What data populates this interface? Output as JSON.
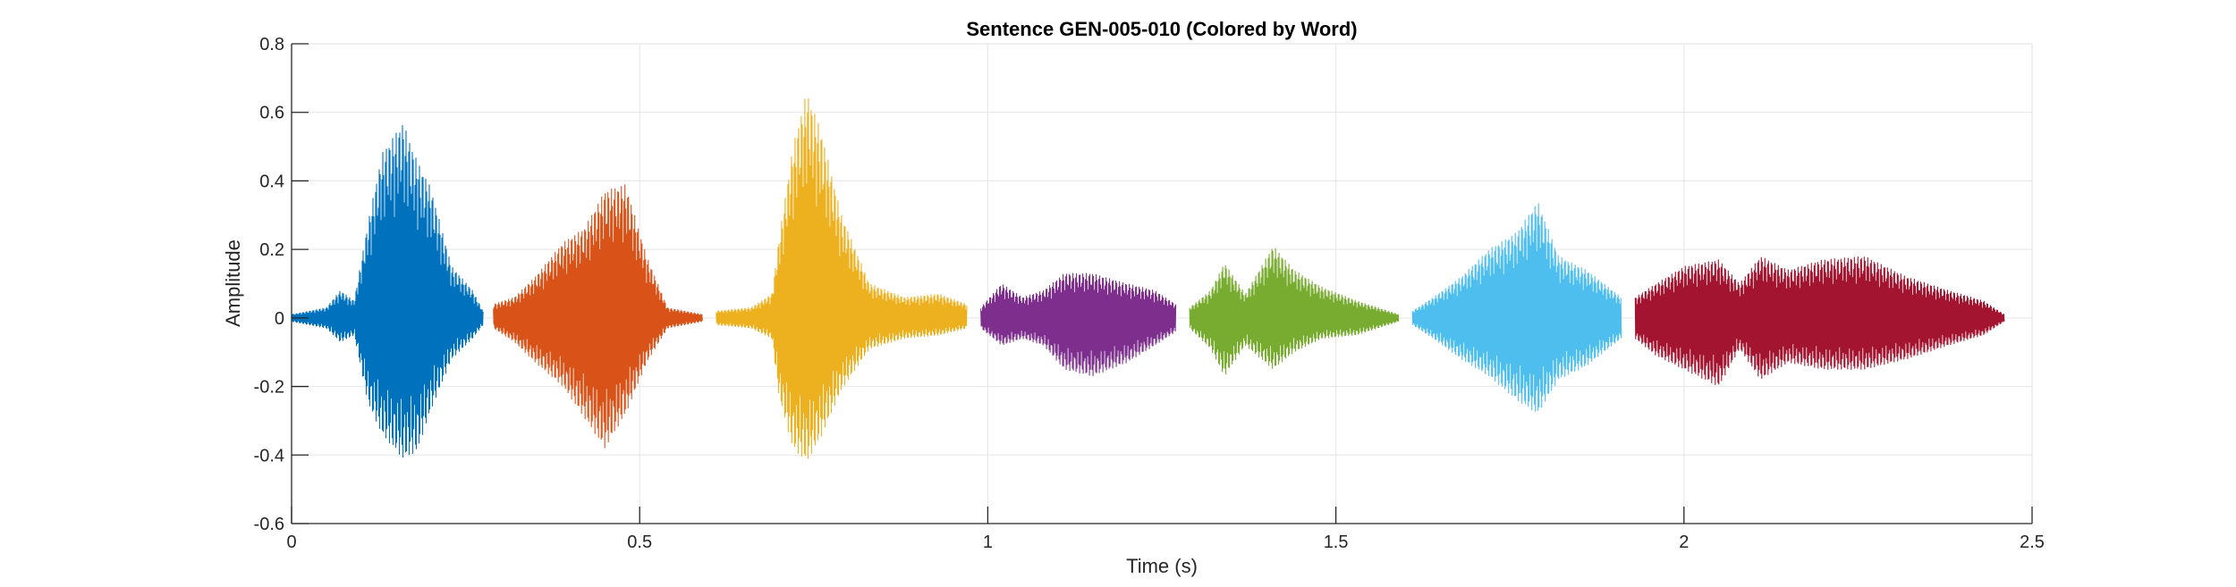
{
  "chart_data": {
    "type": "line",
    "title": "Sentence GEN-005-010 (Colored by Word)",
    "xlabel": "Time (s)",
    "ylabel": "Amplitude",
    "xlim": [
      0,
      2.5
    ],
    "ylim": [
      -0.6,
      0.8
    ],
    "xticks": [
      0,
      0.5,
      1,
      1.5,
      2,
      2.5
    ],
    "xtick_labels": [
      "0",
      "0.5",
      "1",
      "1.5",
      "2",
      "2.5"
    ],
    "yticks": [
      -0.6,
      -0.4,
      -0.2,
      0,
      0.2,
      0.4,
      0.6,
      0.8
    ],
    "ytick_labels": [
      "-0.6",
      "-0.4",
      "-0.2",
      "0",
      "0.2",
      "0.4",
      "0.6",
      "0.8"
    ],
    "grid": true,
    "legend": "none",
    "series": [
      {
        "color": "#0072BD",
        "t_start": 0.0,
        "t_end": 0.275,
        "envelope": [
          [
            0.0,
            0.01,
            -0.01
          ],
          [
            0.05,
            0.03,
            -0.03
          ],
          [
            0.07,
            0.08,
            -0.07
          ],
          [
            0.09,
            0.05,
            -0.05
          ],
          [
            0.11,
            0.28,
            -0.25
          ],
          [
            0.13,
            0.48,
            -0.34
          ],
          [
            0.16,
            0.57,
            -0.41
          ],
          [
            0.18,
            0.46,
            -0.39
          ],
          [
            0.2,
            0.38,
            -0.27
          ],
          [
            0.23,
            0.15,
            -0.12
          ],
          [
            0.26,
            0.08,
            -0.06
          ],
          [
            0.275,
            0.02,
            -0.02
          ]
        ]
      },
      {
        "color": "#D95319",
        "t_start": 0.29,
        "t_end": 0.59,
        "envelope": [
          [
            0.29,
            0.04,
            -0.03
          ],
          [
            0.32,
            0.06,
            -0.07
          ],
          [
            0.35,
            0.12,
            -0.13
          ],
          [
            0.39,
            0.22,
            -0.2
          ],
          [
            0.42,
            0.26,
            -0.29
          ],
          [
            0.45,
            0.37,
            -0.38
          ],
          [
            0.48,
            0.39,
            -0.28
          ],
          [
            0.51,
            0.18,
            -0.13
          ],
          [
            0.54,
            0.03,
            -0.03
          ],
          [
            0.59,
            0.01,
            -0.01
          ]
        ]
      },
      {
        "color": "#EDB120",
        "t_start": 0.61,
        "t_end": 0.97,
        "envelope": [
          [
            0.61,
            0.02,
            -0.02
          ],
          [
            0.66,
            0.03,
            -0.03
          ],
          [
            0.69,
            0.07,
            -0.06
          ],
          [
            0.7,
            0.23,
            -0.23
          ],
          [
            0.72,
            0.5,
            -0.38
          ],
          [
            0.74,
            0.66,
            -0.42
          ],
          [
            0.76,
            0.55,
            -0.35
          ],
          [
            0.79,
            0.3,
            -0.21
          ],
          [
            0.83,
            0.1,
            -0.09
          ],
          [
            0.88,
            0.06,
            -0.06
          ],
          [
            0.93,
            0.07,
            -0.05
          ],
          [
            0.97,
            0.04,
            -0.03
          ]
        ]
      },
      {
        "color": "#7E2F8E",
        "t_start": 0.99,
        "t_end": 1.27,
        "envelope": [
          [
            0.99,
            0.03,
            -0.03
          ],
          [
            1.02,
            0.1,
            -0.08
          ],
          [
            1.05,
            0.06,
            -0.06
          ],
          [
            1.08,
            0.08,
            -0.08
          ],
          [
            1.11,
            0.13,
            -0.15
          ],
          [
            1.15,
            0.13,
            -0.17
          ],
          [
            1.2,
            0.1,
            -0.13
          ],
          [
            1.24,
            0.08,
            -0.08
          ],
          [
            1.27,
            0.04,
            -0.04
          ]
        ]
      },
      {
        "color": "#77AC30",
        "t_start": 1.29,
        "t_end": 1.59,
        "envelope": [
          [
            1.29,
            0.03,
            -0.03
          ],
          [
            1.32,
            0.08,
            -0.09
          ],
          [
            1.34,
            0.16,
            -0.17
          ],
          [
            1.37,
            0.07,
            -0.08
          ],
          [
            1.41,
            0.21,
            -0.15
          ],
          [
            1.44,
            0.14,
            -0.1
          ],
          [
            1.48,
            0.09,
            -0.06
          ],
          [
            1.53,
            0.05,
            -0.05
          ],
          [
            1.59,
            0.01,
            -0.01
          ]
        ]
      },
      {
        "color": "#4DBEEE",
        "t_start": 1.61,
        "t_end": 1.91,
        "envelope": [
          [
            1.61,
            0.02,
            -0.02
          ],
          [
            1.64,
            0.06,
            -0.06
          ],
          [
            1.68,
            0.12,
            -0.12
          ],
          [
            1.72,
            0.2,
            -0.17
          ],
          [
            1.76,
            0.25,
            -0.24
          ],
          [
            1.79,
            0.34,
            -0.28
          ],
          [
            1.82,
            0.18,
            -0.18
          ],
          [
            1.86,
            0.14,
            -0.14
          ],
          [
            1.91,
            0.06,
            -0.06
          ]
        ]
      },
      {
        "color": "#A2142F",
        "t_start": 1.93,
        "t_end": 2.46,
        "envelope": [
          [
            1.93,
            0.06,
            -0.06
          ],
          [
            1.96,
            0.1,
            -0.11
          ],
          [
            2.0,
            0.15,
            -0.15
          ],
          [
            2.05,
            0.17,
            -0.2
          ],
          [
            2.08,
            0.1,
            -0.09
          ],
          [
            2.11,
            0.18,
            -0.18
          ],
          [
            2.15,
            0.14,
            -0.13
          ],
          [
            2.2,
            0.17,
            -0.15
          ],
          [
            2.26,
            0.18,
            -0.15
          ],
          [
            2.32,
            0.12,
            -0.12
          ],
          [
            2.38,
            0.08,
            -0.08
          ],
          [
            2.43,
            0.05,
            -0.05
          ],
          [
            2.46,
            0.01,
            -0.01
          ]
        ]
      }
    ]
  }
}
